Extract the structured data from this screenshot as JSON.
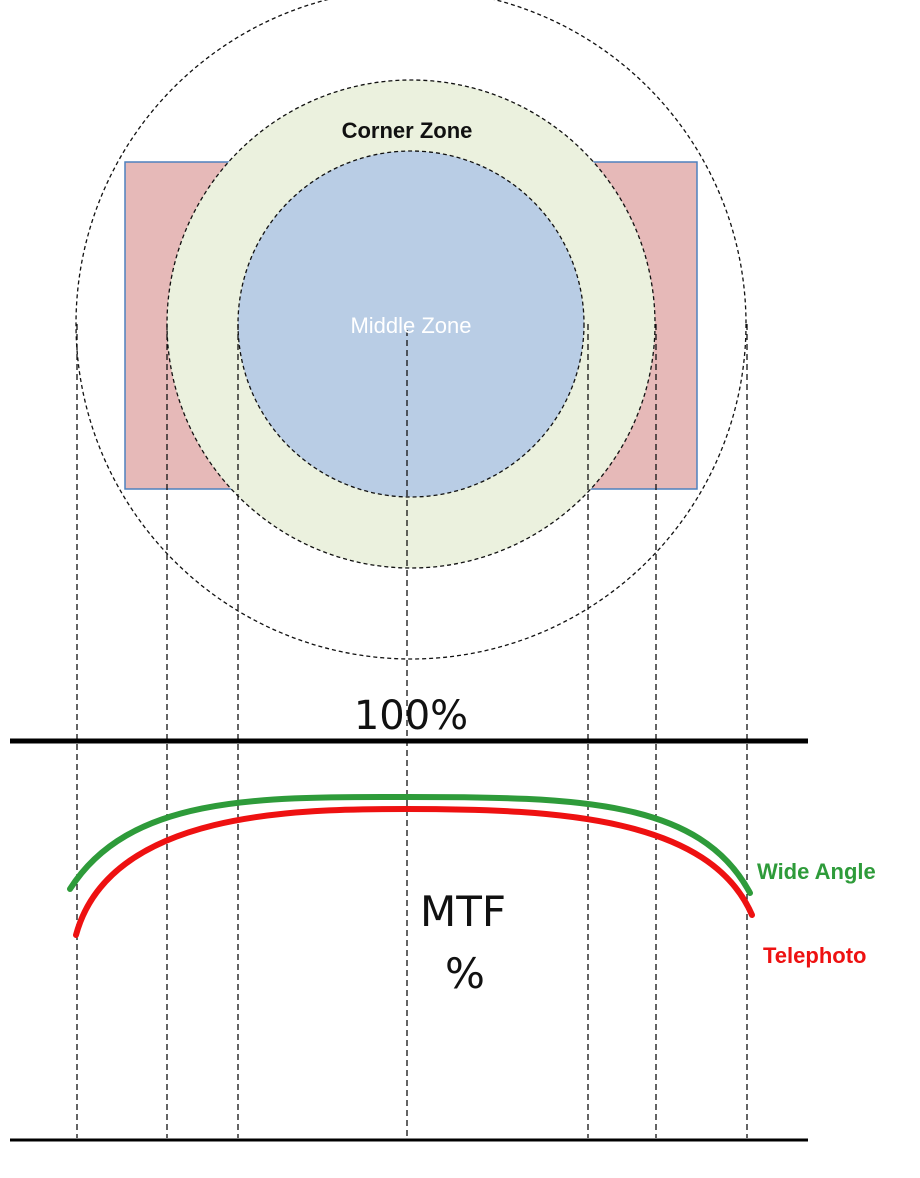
{
  "labels": {
    "corner_zone": "Corner Zone",
    "middle_zone": "Middle Zone",
    "top_line": "100%",
    "mtf_line1": "MTF",
    "mtf_line2": "%"
  },
  "legend": {
    "wide_angle": "Wide Angle",
    "telephoto": "Telephoto"
  },
  "colors": {
    "corner_rect_fill": "#e6b9b8",
    "corner_rect_stroke": "#4f81bd",
    "corner_zone_fill": "#ebf1de",
    "middle_zone_fill": "#b9cde5",
    "wide_angle": "#2e9b3a",
    "telephoto": "#ee1111"
  }
}
